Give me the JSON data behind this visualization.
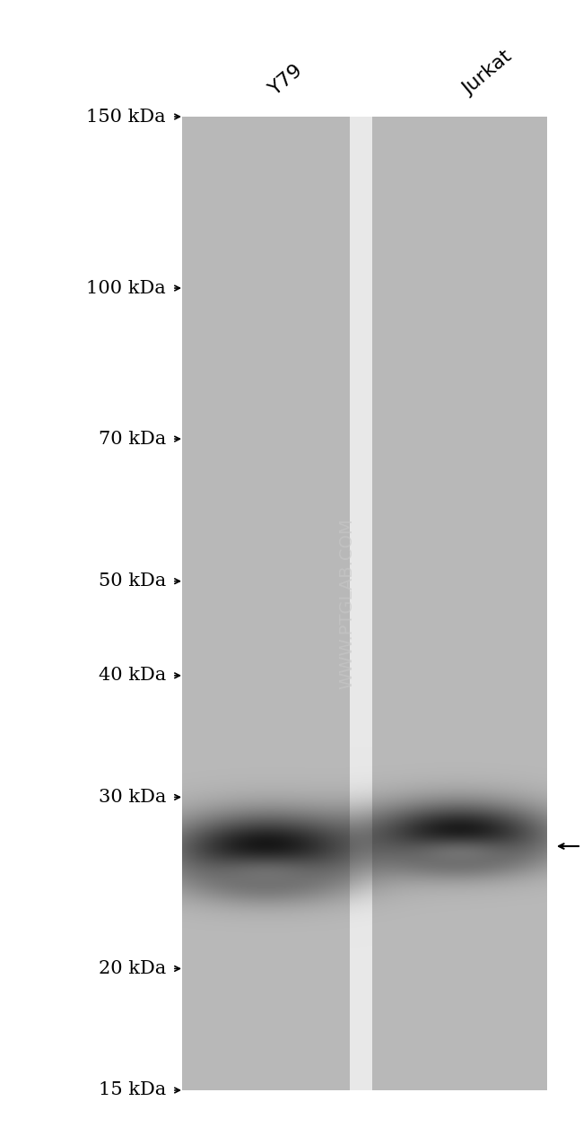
{
  "bg_color": "#ffffff",
  "lane_color": "#b8b8b8",
  "lane_gap_color": "#e8e8e8",
  "band_color": "#080808",
  "labels": [
    "Y79",
    "Jurkat"
  ],
  "mw_markers": [
    "150 kDa",
    "100 kDa",
    "70 kDa",
    "50 kDa",
    "40 kDa",
    "30 kDa",
    "20 kDa",
    "15 kDa"
  ],
  "mw_values": [
    150,
    100,
    70,
    50,
    40,
    30,
    20,
    15
  ],
  "band_mw": 27,
  "watermark": "WWW.PTGLAB.COM",
  "fig_width": 6.5,
  "fig_height": 12.76
}
